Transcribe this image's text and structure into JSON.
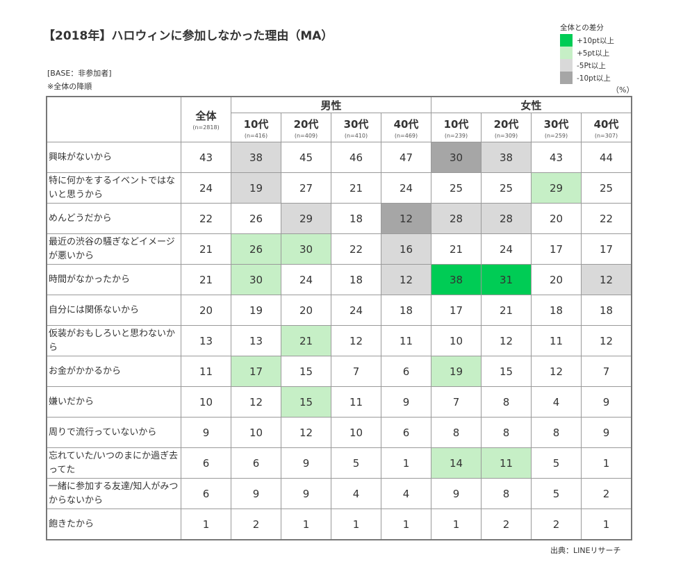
{
  "title": "【2018年】ハロウィンに参加しなかった理由（MA）",
  "base": "[BASE：非参加者]",
  "sort_note": "※全体の降順",
  "unit": "（%）",
  "source": "出典：LINEリサーチ",
  "legend": {
    "title": "全体との差分",
    "items": [
      {
        "label": "+10pt以上",
        "color": "#00cc55"
      },
      {
        "label": "+5pt以上",
        "color": "#c6efc6"
      },
      {
        "label": "-5Pt以上",
        "color": "#d9d9d9"
      },
      {
        "label": "-10pt以上",
        "color": "#a6a6a6"
      }
    ]
  },
  "header": {
    "total": {
      "label": "全体",
      "n": "(n=2818)"
    },
    "male": {
      "label": "男性",
      "cols": [
        {
          "label": "10代",
          "n": "(n=416)"
        },
        {
          "label": "20代",
          "n": "(n=409)"
        },
        {
          "label": "30代",
          "n": "(n=410)"
        },
        {
          "label": "40代",
          "n": "(n=469)"
        }
      ]
    },
    "female": {
      "label": "女性",
      "cols": [
        {
          "label": "10代",
          "n": "(n=239)"
        },
        {
          "label": "20代",
          "n": "(n=309)"
        },
        {
          "label": "30代",
          "n": "(n=259)"
        },
        {
          "label": "40代",
          "n": "(n=307)"
        }
      ]
    }
  },
  "rows": [
    {
      "label": "興味がないから",
      "values": [
        43,
        38,
        45,
        46,
        47,
        30,
        38,
        43,
        44
      ],
      "shade": [
        "",
        "s1",
        "",
        "",
        "",
        "s2",
        "s1",
        "",
        ""
      ]
    },
    {
      "label": "特に何かをするイベントではないと思うから",
      "values": [
        24,
        19,
        27,
        21,
        24,
        25,
        25,
        29,
        25
      ],
      "shade": [
        "",
        "s1",
        "",
        "",
        "",
        "",
        "",
        "g1",
        ""
      ]
    },
    {
      "label": "めんどうだから",
      "values": [
        22,
        26,
        29,
        18,
        12,
        28,
        28,
        20,
        22
      ],
      "shade": [
        "",
        "",
        "s1",
        "",
        "s2",
        "s1",
        "s1",
        "",
        ""
      ]
    },
    {
      "label": "最近の渋谷の騒ぎなどイメージが悪いから",
      "values": [
        21,
        26,
        30,
        22,
        16,
        21,
        24,
        17,
        17
      ],
      "shade": [
        "",
        "g1",
        "g1",
        "",
        "s1",
        "",
        "",
        "",
        ""
      ]
    },
    {
      "label": "時間がなかったから",
      "values": [
        21,
        30,
        24,
        18,
        12,
        38,
        31,
        20,
        12
      ],
      "shade": [
        "",
        "g1",
        "",
        "",
        "s1",
        "g2",
        "g2",
        "",
        "s1"
      ]
    },
    {
      "label": "自分には関係ないから",
      "values": [
        20,
        19,
        20,
        24,
        18,
        17,
        21,
        18,
        18
      ],
      "shade": [
        "",
        "",
        "",
        "",
        "",
        "",
        "",
        "",
        ""
      ]
    },
    {
      "label": "仮装がおもしろいと思わないから",
      "values": [
        13,
        13,
        21,
        12,
        11,
        10,
        12,
        11,
        12
      ],
      "shade": [
        "",
        "",
        "g1",
        "",
        "",
        "",
        "",
        "",
        ""
      ]
    },
    {
      "label": "お金がかかるから",
      "values": [
        11,
        17,
        15,
        7,
        6,
        19,
        15,
        12,
        7
      ],
      "shade": [
        "",
        "g1",
        "",
        "",
        "",
        "g1",
        "",
        "",
        ""
      ]
    },
    {
      "label": "嫌いだから",
      "values": [
        10,
        12,
        15,
        11,
        9,
        7,
        8,
        4,
        9
      ],
      "shade": [
        "",
        "",
        "g1",
        "",
        "",
        "",
        "",
        "",
        ""
      ]
    },
    {
      "label": "周りで流行っていないから",
      "values": [
        9,
        10,
        12,
        10,
        6,
        8,
        8,
        8,
        9
      ],
      "shade": [
        "",
        "",
        "",
        "",
        "",
        "",
        "",
        "",
        ""
      ]
    },
    {
      "label": "忘れていた/いつのまにか過ぎ去ってた",
      "values": [
        6,
        6,
        9,
        5,
        1,
        14,
        11,
        5,
        1
      ],
      "shade": [
        "",
        "",
        "",
        "",
        "",
        "g1",
        "g1",
        "",
        ""
      ]
    },
    {
      "label": "一緒に参加する友達/知人がみつからないから",
      "values": [
        6,
        9,
        9,
        4,
        4,
        9,
        8,
        5,
        2
      ],
      "shade": [
        "",
        "",
        "",
        "",
        "",
        "",
        "",
        "",
        ""
      ]
    },
    {
      "label": "飽きたから",
      "values": [
        1,
        2,
        1,
        1,
        1,
        1,
        2,
        2,
        1
      ],
      "shade": [
        "",
        "",
        "",
        "",
        "",
        "",
        "",
        "",
        ""
      ]
    }
  ]
}
